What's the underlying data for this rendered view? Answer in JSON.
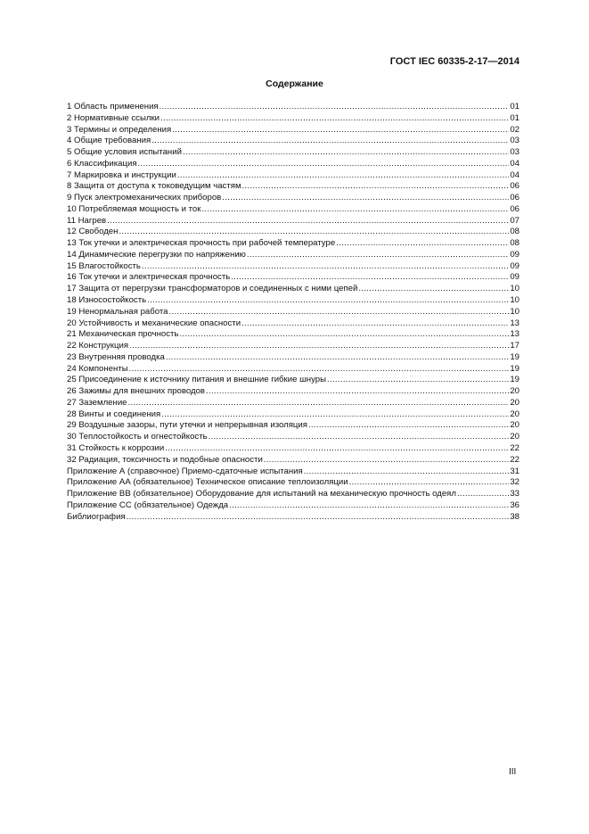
{
  "header": "ГОСТ IEC 60335-2-17—2014",
  "title": "Содержание",
  "entries": [
    {
      "t": "1 Область применения",
      "p": "01"
    },
    {
      "t": "2 Нормативные ссылки",
      "p": "01"
    },
    {
      "t": "3 Термины и определения",
      "p": "02"
    },
    {
      "t": "4 Общие требования",
      "p": "03"
    },
    {
      "t": "5 Общие условия испытаний",
      "p": "03"
    },
    {
      "t": "6 Классификация",
      "p": "04"
    },
    {
      "t": "7 Маркировка и инструкции",
      "p": "04"
    },
    {
      "t": "8 Защита от доступа к токоведущим частям",
      "p": "06"
    },
    {
      "t": "9 Пуск электромеханических приборов",
      "p": "06"
    },
    {
      "t": "10 Потребляемая мощность и ток",
      "p": "06"
    },
    {
      "t": "11 Нагрев",
      "p": "07"
    },
    {
      "t": "12 Свободен",
      "p": "08"
    },
    {
      "t": "13 Ток утечки и электрическая прочность при рабочей температуре",
      "p": "08"
    },
    {
      "t": "14 Динамические перегрузки по напряжению",
      "p": "09"
    },
    {
      "t": "15 Влагостойкость",
      "p": "09"
    },
    {
      "t": "16 Ток утечки и электрическая прочность",
      "p": "09"
    },
    {
      "t": "17 Защита от перегрузки трансформаторов и соединенных с ними цепей",
      "p": "10"
    },
    {
      "t": "18 Износостойкость",
      "p": "10"
    },
    {
      "t": "19 Ненормальная работа",
      "p": "10"
    },
    {
      "t": "20 Устойчивость и механические опасности",
      "p": "13"
    },
    {
      "t": "21 Механическая прочность",
      "p": "13"
    },
    {
      "t": "22 Конструкция",
      "p": "17"
    },
    {
      "t": "23 Внутренняя проводка",
      "p": "19"
    },
    {
      "t": "24 Компоненты",
      "p": "19"
    },
    {
      "t": "25 Присоединение к источнику питания и внешние гибкие шнуры",
      "p": "19"
    },
    {
      "t": "26 Зажимы для внешних проводов",
      "p": "20"
    },
    {
      "t": "27 Заземление",
      "p": "20"
    },
    {
      "t": "28 Винты и соединения",
      "p": "20"
    },
    {
      "t": "29 Воздушные зазоры, пути утечки и непрерывная изоляция",
      "p": "20"
    },
    {
      "t": "30 Теплостойкость и огнестойкость",
      "p": "20"
    },
    {
      "t": "31 Стойкость к коррозии",
      "p": "22"
    },
    {
      "t": "32 Радиация, токсичность и подобные опасности",
      "p": "22"
    },
    {
      "t": "Приложение А (справочное) Приемо-сдаточные испытания",
      "p": "31"
    },
    {
      "t": "Приложение АА (обязательное) Техническое описание теплоизоляции",
      "p": "32"
    },
    {
      "t": "Приложение ВВ (обязательное) Оборудование для испытаний на механическую прочность одеял",
      "p": "33"
    },
    {
      "t": "Приложение СС (обязательное) Одежда",
      "p": "36"
    },
    {
      "t": "Библиография",
      "p": "38"
    }
  ],
  "page_number": "III"
}
